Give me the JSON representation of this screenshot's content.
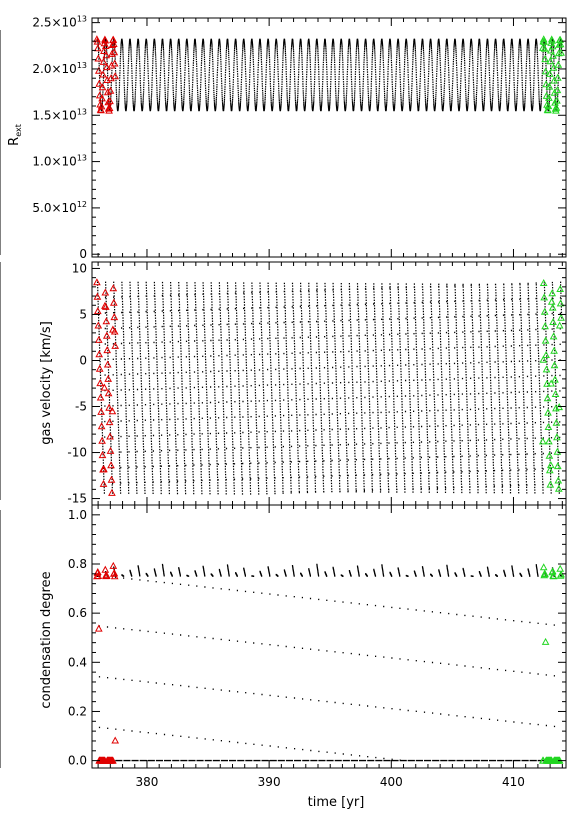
{
  "chart_data": [
    {
      "type": "scatter",
      "panel": "radius",
      "title": "",
      "xlabel": "",
      "ylabel": "R_ext",
      "ylabel_main": "R",
      "ylabel_sub": "ext",
      "xlim": [
        375.5,
        414.3
      ],
      "ylim": [
        -300000000000.0,
        25500000000000.0
      ],
      "yticks": [
        {
          "value": 0,
          "label": "0"
        },
        {
          "value": 5000000000000.0,
          "label": "5.0×10",
          "exp": "12"
        },
        {
          "value": 10000000000000.0,
          "label": "1.0×10",
          "exp": "13"
        },
        {
          "value": 15000000000000.0,
          "label": "1.5×10",
          "exp": "13"
        },
        {
          "value": 20000000000000.0,
          "label": "2.0×10",
          "exp": "13"
        },
        {
          "value": 25000000000000.0,
          "label": "2.5×10",
          "exp": "13"
        }
      ],
      "signal": {
        "min": 15500000000000.0,
        "max": 23200000000000.0,
        "period_yr": 0.665,
        "x_start": 375.9,
        "x_end": 413.9,
        "shape": "sinusoid"
      },
      "series": [
        {
          "color": "#000000",
          "marker": "dot",
          "x": [
            375.9,
            413.9
          ]
        },
        {
          "color": "#e00000",
          "marker": "triangle-open",
          "x": [
            375.9,
            377.4
          ]
        },
        {
          "color": "#22d622",
          "marker": "triangle-open",
          "x": [
            412.4,
            413.9
          ]
        }
      ]
    },
    {
      "type": "scatter",
      "panel": "velocity",
      "title": "",
      "xlabel": "",
      "ylabel": "gas velocity [km/s]",
      "xlim": [
        375.5,
        414.3
      ],
      "ylim": [
        -15.7,
        10.7
      ],
      "yticks": [
        {
          "value": -15,
          "label": "-15"
        },
        {
          "value": -10,
          "label": "-10"
        },
        {
          "value": -5,
          "label": "-5"
        },
        {
          "value": 0,
          "label": "0"
        },
        {
          "value": 5,
          "label": "5"
        },
        {
          "value": 10,
          "label": "10"
        }
      ],
      "signal": {
        "min": -14.5,
        "max": 8.5,
        "period_yr": 0.665,
        "x_start": 375.9,
        "x_end": 413.9,
        "shape": "sawtooth"
      },
      "series": [
        {
          "color": "#000000",
          "marker": "dot",
          "x": [
            375.9,
            413.9
          ]
        },
        {
          "color": "#e00000",
          "marker": "triangle-open",
          "x": [
            375.9,
            377.4
          ]
        },
        {
          "color": "#22d622",
          "marker": "triangle-open",
          "x": [
            412.4,
            413.9
          ]
        }
      ]
    },
    {
      "type": "scatter",
      "panel": "condensation",
      "title": "",
      "xlabel": "time [yr]",
      "ylabel": "condensation degree",
      "xlim": [
        375.5,
        414.3
      ],
      "ylim": [
        -0.03,
        1.04
      ],
      "xticks": [
        {
          "value": 380,
          "label": "380"
        },
        {
          "value": 390,
          "label": "390"
        },
        {
          "value": 400,
          "label": "400"
        },
        {
          "value": 410,
          "label": "410"
        }
      ],
      "yticks": [
        {
          "value": 0.0,
          "label": "0.0"
        },
        {
          "value": 0.2,
          "label": "0.2"
        },
        {
          "value": 0.4,
          "label": "0.4"
        },
        {
          "value": 0.6,
          "label": "0.6"
        },
        {
          "value": 0.8,
          "label": "0.8"
        },
        {
          "value": 1.0,
          "label": "1.0"
        }
      ],
      "signal": {
        "low": 0.0,
        "high_min": 0.75,
        "high_max": 1.0,
        "period_yr": 0.665,
        "x_start": 375.9,
        "x_end": 413.9,
        "shape": "pulse"
      },
      "series": [
        {
          "color": "#000000",
          "marker": "dot",
          "x": [
            375.9,
            413.9
          ]
        },
        {
          "color": "#e00000",
          "marker": "triangle-open",
          "x": [
            375.9,
            377.4
          ]
        },
        {
          "color": "#22d622",
          "marker": "triangle-open",
          "x": [
            412.4,
            413.9
          ]
        }
      ]
    }
  ]
}
